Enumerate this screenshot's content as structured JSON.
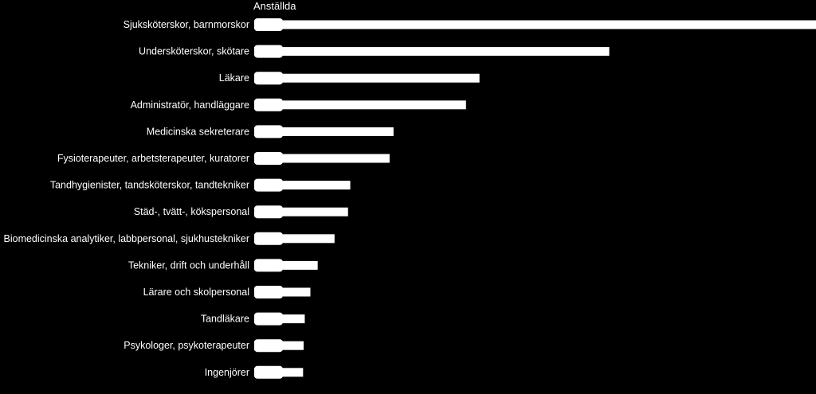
{
  "chart_data": {
    "type": "bar",
    "orientation": "horizontal",
    "title": "Anställda",
    "categories": [
      "Sjuksköterskor, barnmorskor",
      "Undersköterskor, skötare",
      "Läkare",
      "Administratör, handläggare",
      "Medicinska sekreterare",
      "Fysioterapeuter, arbetsterapeuter, kuratorer",
      "Tandhygienister, tandsköterskor, tandtekniker",
      "Städ-, tvätt-, kökspersonal",
      "Biomedicinska analytiker, labbpersonal, sjukhustekniker",
      "Tekniker, drift och underhåll",
      "Lärare och skolpersonal",
      "Tandläkare",
      "Psykologer, psykoterapeuter",
      "Ingenjörer"
    ],
    "values": [
      100,
      63.2,
      40.1,
      37.7,
      24.8,
      24.1,
      17.1,
      16.7,
      14.3,
      11.3,
      10.0,
      9.0,
      8.8,
      8.7
    ],
    "xlim": [
      0,
      100
    ],
    "grid": false,
    "legend": "none",
    "colors": {
      "background": "#000000",
      "bar": "#ffffff",
      "text": "#ffffff"
    }
  }
}
